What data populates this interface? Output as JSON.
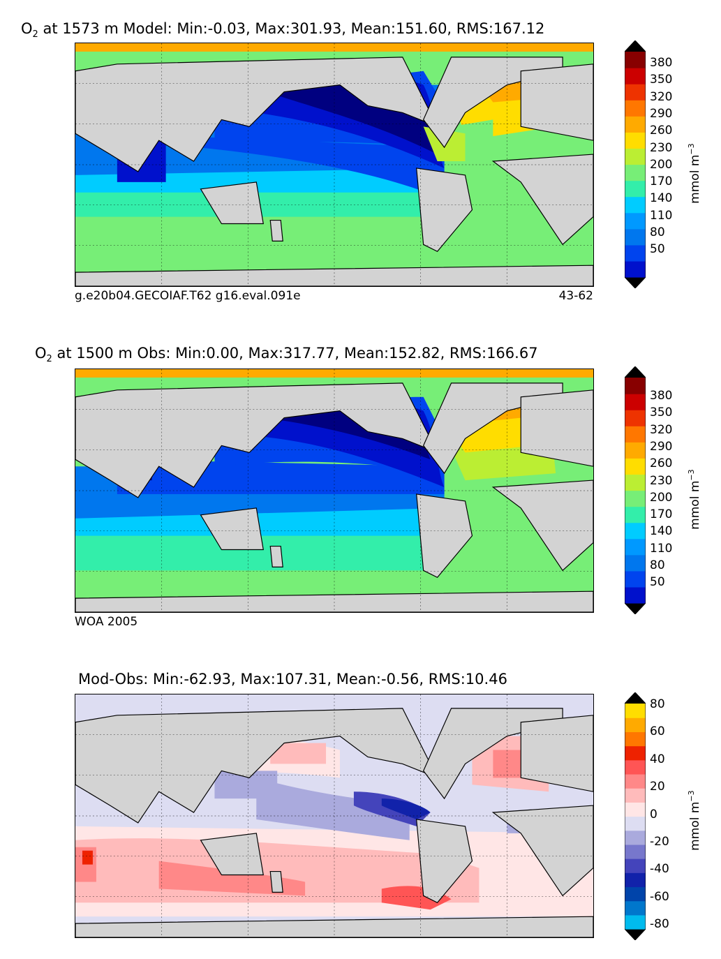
{
  "chart_data": [
    {
      "type": "heatmap",
      "title": {
        "species": "O",
        "sub": "2",
        "rest": " at 1573 m Model: Min:-0.03, Max:301.93, Mean:151.60, RMS:167.12"
      },
      "footer_left": "g.e20b04.GECOIAF.T62 g16.eval.091e",
      "footer_right": "43-62",
      "colorbar": {
        "label": "mmol m",
        "label_exp": "−3",
        "ticks": [
          "380",
          "350",
          "320",
          "290",
          "260",
          "230",
          "200",
          "170",
          "140",
          "110",
          "80",
          "50"
        ],
        "colors": [
          "#000080",
          "#0011cc",
          "#0044ee",
          "#0077ee",
          "#0099ff",
          "#00ccff",
          "#33eeaa",
          "#77ee77",
          "#bbee33",
          "#ffdd00",
          "#ffaa00",
          "#ff7700",
          "#ee3300",
          "#cc0000",
          "#880000",
          "#550000"
        ],
        "extend": "both"
      }
    },
    {
      "type": "heatmap",
      "title": {
        "species": "O",
        "sub": "2",
        "rest": " at 1500 m Obs: Min:0.00, Max:317.77, Mean:152.82, RMS:166.67"
      },
      "footer_left": "WOA 2005",
      "footer_right": "",
      "colorbar": {
        "label": "mmol m",
        "label_exp": "−3",
        "ticks": [
          "380",
          "350",
          "320",
          "290",
          "260",
          "230",
          "200",
          "170",
          "140",
          "110",
          "80",
          "50"
        ],
        "colors": [
          "#000080",
          "#0011cc",
          "#0044ee",
          "#0077ee",
          "#0099ff",
          "#00ccff",
          "#33eeaa",
          "#77ee77",
          "#bbee33",
          "#ffdd00",
          "#ffaa00",
          "#ff7700",
          "#ee3300",
          "#cc0000",
          "#880000",
          "#550000"
        ],
        "extend": "both"
      }
    },
    {
      "type": "heatmap",
      "title": {
        "species": "",
        "sub": "",
        "rest": "Mod-Obs: Min:-62.93, Max:107.31, Mean:-0.56, RMS:10.46"
      },
      "footer_left": "",
      "footer_right": "",
      "colorbar": {
        "label": "mmol m",
        "label_exp": "−3",
        "ticks": [
          "80",
          "60",
          "40",
          "20",
          "0",
          "-20",
          "-40",
          "-60",
          "-80"
        ],
        "colors": [
          "#00eeee",
          "#00bbee",
          "#0077cc",
          "#0044aa",
          "#1122aa",
          "#4444bb",
          "#7777cc",
          "#aaaadd",
          "#ddddf2",
          "#ffe6e6",
          "#ffbbbb",
          "#ff8888",
          "#ff5555",
          "#ee2200",
          "#ff7700",
          "#ffaa00",
          "#ffdd00",
          "#ffff44"
        ],
        "extend": "both"
      }
    }
  ]
}
